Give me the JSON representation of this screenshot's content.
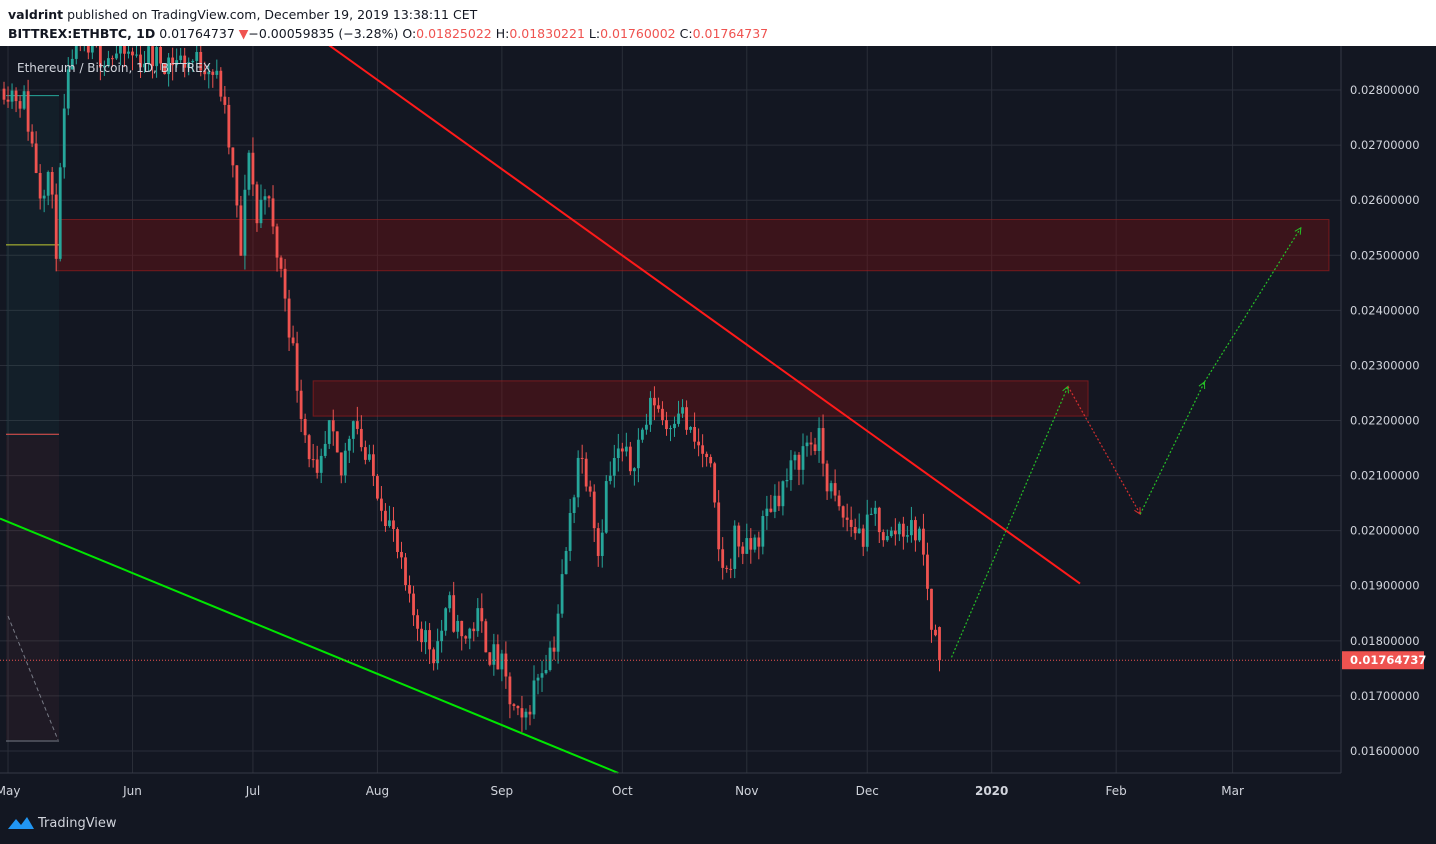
{
  "header": {
    "author": "valdrint",
    "published_text": "published on TradingView.com, December 19, 2019 13:38:11 CET",
    "symbol": "BITTREX:ETHBTC, 1D",
    "last_price": "0.01764737",
    "change_arrow": "▼",
    "change_text": "−0.00059835 (−3.28%)",
    "open_label": "O:",
    "open_value": "0.01825022",
    "high_label": "H:",
    "high_value": "0.01830221",
    "low_label": "L:",
    "low_value": "0.01760002",
    "close_label": "C:",
    "close_value": "0.01764737"
  },
  "colors": {
    "background": "#131722",
    "grid": "#2a2e39",
    "up": "#26a69a",
    "down": "#ef5350",
    "resistance_zone": "rgba(136,14,14,0.35)",
    "red_trendline": "#ff1a1a",
    "green_trendline": "#00e600",
    "projection_up": "#26c026",
    "projection_down": "#d32f2f",
    "price_label_bg": "#ef5350"
  },
  "chart_data": {
    "type": "candlestick",
    "title": "Ethereum / Bitcoin, 1D, BITTREX",
    "x_ticks": [
      "May",
      "Jun",
      "Jul",
      "Aug",
      "Sep",
      "Oct",
      "Nov",
      "Dec",
      "2020",
      "Feb",
      "Mar"
    ],
    "y_ticks": [
      "0.02800000",
      "0.02700000",
      "0.02600000",
      "0.02500000",
      "0.02400000",
      "0.02300000",
      "0.02200000",
      "0.02100000",
      "0.02000000",
      "0.01900000",
      "0.01800000",
      "0.01700000",
      "0.01600000"
    ],
    "y_tick_values": [
      0.028,
      0.027,
      0.026,
      0.025,
      0.024,
      0.023,
      0.022,
      0.021,
      0.02,
      0.019,
      0.018,
      0.017,
      0.016
    ],
    "ylim": [
      0.0156,
      0.0288
    ],
    "x_range": [
      "2019-04-29",
      "2020-03-28"
    ],
    "current_price": 0.01764737,
    "current_price_label": "0.01764737",
    "close_anchors": [
      [
        "2019-04-30",
        0.0281
      ],
      [
        "2019-05-05",
        0.0278
      ],
      [
        "2019-05-09",
        0.0262
      ],
      [
        "2019-05-11",
        0.0265
      ],
      [
        "2019-05-13",
        0.0252
      ],
      [
        "2019-05-15",
        0.0275
      ],
      [
        "2019-05-17",
        0.0287
      ],
      [
        "2019-06-20",
        0.0285
      ],
      [
        "2019-06-23",
        0.028
      ],
      [
        "2019-06-26",
        0.0265
      ],
      [
        "2019-06-28",
        0.025
      ],
      [
        "2019-06-30",
        0.027
      ],
      [
        "2019-07-02",
        0.0256
      ],
      [
        "2019-07-04",
        0.0263
      ],
      [
        "2019-07-06",
        0.0254
      ],
      [
        "2019-07-09",
        0.0243
      ],
      [
        "2019-07-12",
        0.0227
      ],
      [
        "2019-07-14",
        0.0218
      ],
      [
        "2019-07-17",
        0.0208
      ],
      [
        "2019-07-20",
        0.0218
      ],
      [
        "2019-07-23",
        0.021
      ],
      [
        "2019-07-26",
        0.0222
      ],
      [
        "2019-07-29",
        0.0213
      ],
      [
        "2019-08-01",
        0.0208
      ],
      [
        "2019-08-05",
        0.0199
      ],
      [
        "2019-08-09",
        0.0186
      ],
      [
        "2019-08-12",
        0.0182
      ],
      [
        "2019-08-15",
        0.0178
      ],
      [
        "2019-08-19",
        0.0186
      ],
      [
        "2019-08-22",
        0.018
      ],
      [
        "2019-08-26",
        0.0184
      ],
      [
        "2019-08-29",
        0.0178
      ],
      [
        "2019-09-01",
        0.0175
      ],
      [
        "2019-09-03",
        0.0169
      ],
      [
        "2019-09-06",
        0.0164
      ],
      [
        "2019-09-10",
        0.0174
      ],
      [
        "2019-09-14",
        0.018
      ],
      [
        "2019-09-17",
        0.0196
      ],
      [
        "2019-09-20",
        0.0214
      ],
      [
        "2019-09-23",
        0.0209
      ],
      [
        "2019-09-25",
        0.0196
      ],
      [
        "2019-09-27",
        0.0208
      ],
      [
        "2019-09-30",
        0.0214
      ],
      [
        "2019-10-03",
        0.0212
      ],
      [
        "2019-10-06",
        0.0218
      ],
      [
        "2019-10-09",
        0.0224
      ],
      [
        "2019-10-12",
        0.0219
      ],
      [
        "2019-10-15",
        0.0223
      ],
      [
        "2019-10-18",
        0.0217
      ],
      [
        "2019-10-21",
        0.0214
      ],
      [
        "2019-10-23",
        0.021
      ],
      [
        "2019-10-25",
        0.0196
      ],
      [
        "2019-10-27",
        0.0192
      ],
      [
        "2019-10-29",
        0.0199
      ],
      [
        "2019-11-01",
        0.0196
      ],
      [
        "2019-11-04",
        0.0199
      ],
      [
        "2019-11-07",
        0.0205
      ],
      [
        "2019-11-10",
        0.0208
      ],
      [
        "2019-11-13",
        0.0212
      ],
      [
        "2019-11-16",
        0.0216
      ],
      [
        "2019-11-19",
        0.0216
      ],
      [
        "2019-11-21",
        0.0209
      ],
      [
        "2019-11-24",
        0.0203
      ],
      [
        "2019-11-27",
        0.0201
      ],
      [
        "2019-11-30",
        0.0199
      ],
      [
        "2019-12-03",
        0.0203
      ],
      [
        "2019-12-06",
        0.0198
      ],
      [
        "2019-12-09",
        0.0201
      ],
      [
        "2019-12-12",
        0.02
      ],
      [
        "2019-12-14",
        0.02
      ],
      [
        "2019-12-16",
        0.019
      ],
      [
        "2019-12-17",
        0.0183
      ],
      [
        "2019-12-18",
        0.018
      ],
      [
        "2019-12-19",
        0.01764737
      ]
    ],
    "resistance_zones": [
      {
        "from": "2019-05-13",
        "to": "2020-03-25",
        "low": 0.02472,
        "high": 0.02565
      },
      {
        "from": "2019-07-16",
        "to": "2020-01-25",
        "low": 0.02208,
        "high": 0.02272
      }
    ],
    "trendlines": [
      {
        "name": "descending-resistance",
        "from": [
          "2019-07-03",
          0.0297
        ],
        "to": [
          "2020-01-23",
          0.01904
        ]
      },
      {
        "name": "descending-support",
        "from": [
          "2019-04-29",
          0.02022
        ],
        "to": [
          "2019-09-30",
          0.0156
        ]
      }
    ],
    "projection": [
      [
        "2019-12-22",
        0.0177
      ],
      [
        "2020-01-20",
        0.02262
      ],
      [
        "2020-02-07",
        0.0203
      ],
      [
        "2020-02-23",
        0.0227
      ],
      [
        "2020-03-18",
        0.0255
      ]
    ]
  },
  "footer": {
    "brand": "TradingView"
  }
}
